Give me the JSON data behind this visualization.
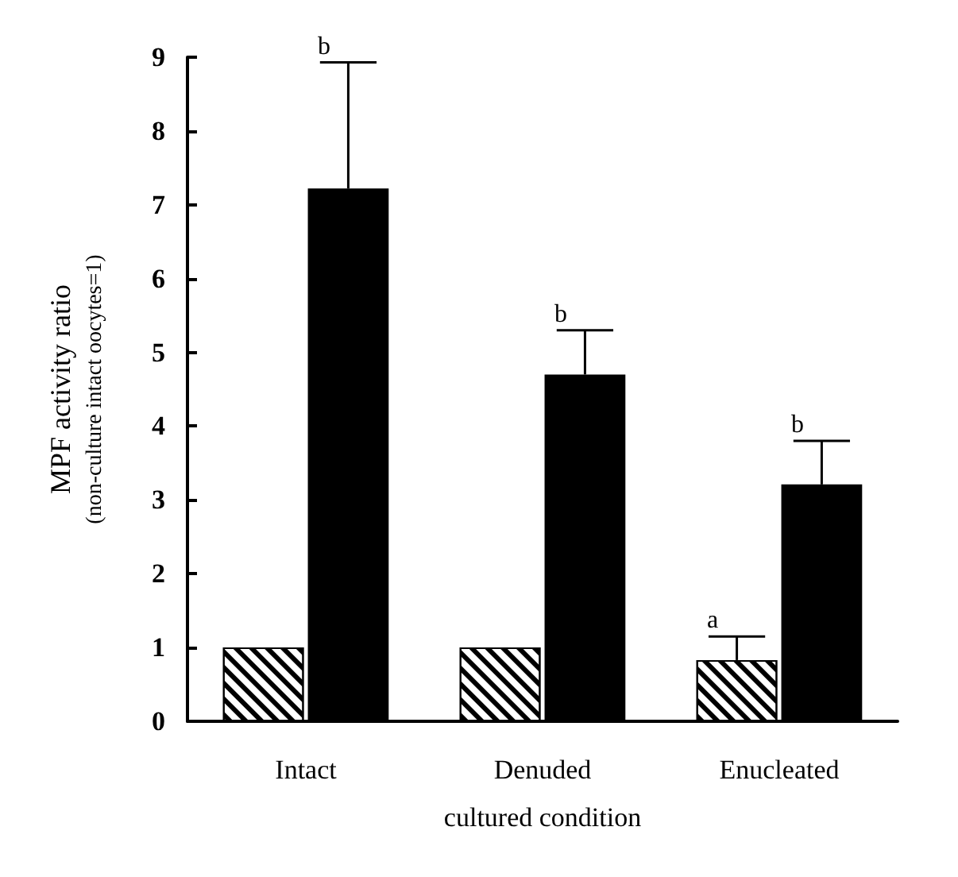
{
  "chart_data": {
    "type": "bar",
    "xlabel": "cultured condition",
    "ylabel": "MPF activity ratio\n(non-culture intact oocytes=1)",
    "categories": [
      "Intact",
      "Denuded",
      "Enucleated"
    ],
    "series": [
      {
        "color": "#ffffff",
        "values": [
          1.0,
          1.0,
          0.83
        ],
        "errors": [
          null,
          null,
          [
            0.83,
            1.15
          ]
        ]
      },
      {
        "color": "#000000",
        "values": [
          7.22,
          4.7,
          3.21
        ],
        "errors": [
          [
            7.22,
            8.93
          ],
          [
            4.7,
            5.3
          ],
          [
            3.21,
            3.8
          ]
        ]
      }
    ],
    "annotations": [
      "b",
      "b",
      "a",
      "b"
    ],
    "ylim": [
      0,
      9
    ],
    "yticks": [
      0,
      1,
      2,
      3,
      4,
      5,
      6,
      7,
      8,
      9
    ],
    "grid": false
  }
}
